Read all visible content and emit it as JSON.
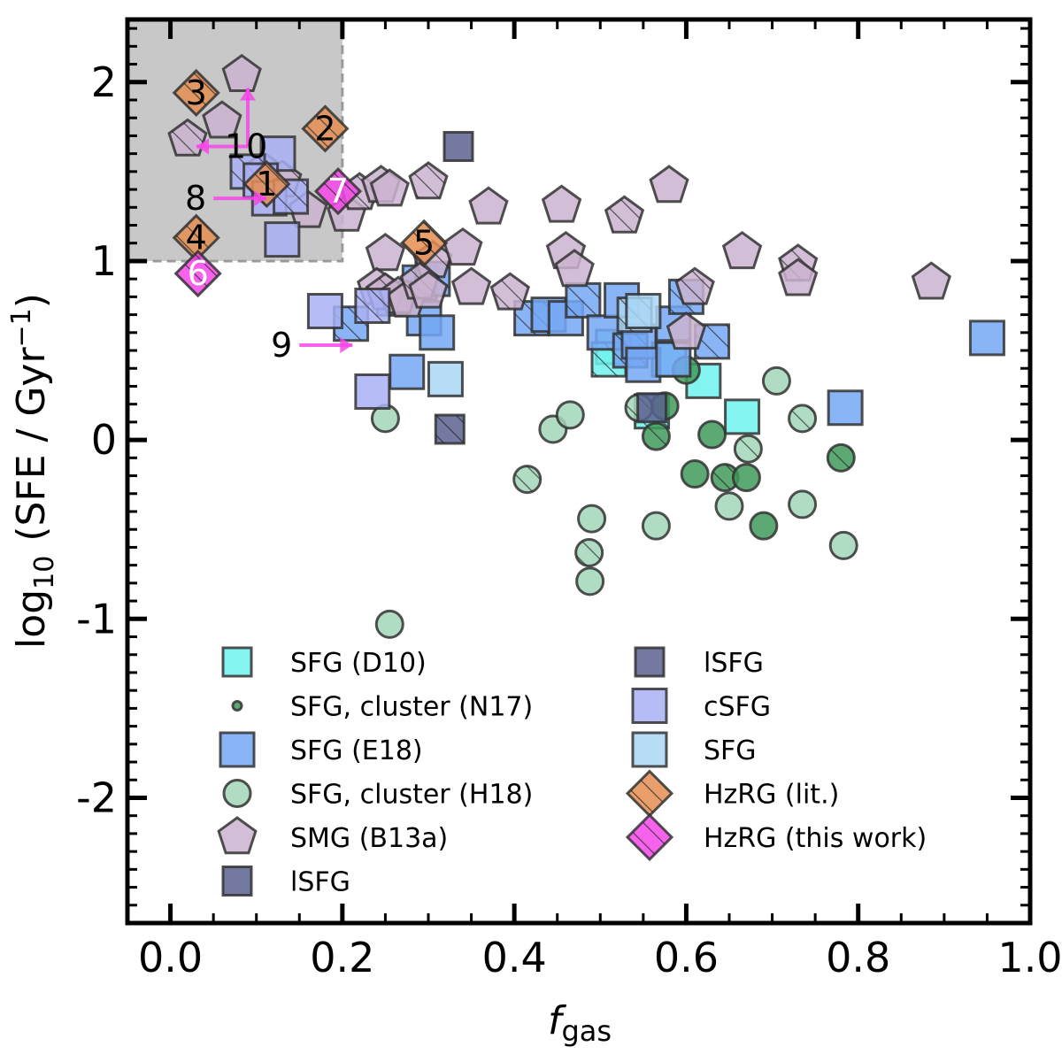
{
  "chart_data": {
    "type": "scatter",
    "xlabel_italic": "f",
    "xlabel_sub": "gas",
    "ylabel_pre": "log",
    "ylabel_sub": "10",
    "ylabel_post": "(SFE / Gyr",
    "ylabel_sup": "−1",
    "ylabel_close": ")",
    "xlim": [
      -0.05,
      1.0
    ],
    "ylim": [
      -2.7,
      2.35
    ],
    "x_ticks": [
      0.0,
      0.2,
      0.4,
      0.6,
      0.8,
      1.0
    ],
    "x_tick_labels": [
      "0.0",
      "0.2",
      "0.4",
      "0.6",
      "0.8",
      "1.0"
    ],
    "y_ticks": [
      2,
      1,
      0,
      -1,
      -2
    ],
    "y_tick_labels": [
      "2",
      "1",
      "0",
      "-1",
      "-2"
    ],
    "shaded_region": {
      "x": [
        -0.05,
        0.2
      ],
      "y": [
        1.0,
        2.35
      ],
      "color": "#c8c8c8"
    },
    "series": [
      {
        "name": "SFG (D10)",
        "marker": "square",
        "color": "#6ff2ee",
        "points": [
          [
            0.515,
            0.52
          ],
          [
            0.51,
            0.45
          ],
          [
            0.58,
            0.45
          ],
          [
            0.62,
            0.33
          ],
          [
            0.56,
            0.16
          ],
          [
            0.665,
            0.13
          ]
        ]
      },
      {
        "name": "SFG, cluster (N17)",
        "marker": "circle",
        "color": "#3f9a5a",
        "points": [
          [
            0.6,
            0.39
          ],
          [
            0.565,
            0.02
          ],
          [
            0.63,
            0.03
          ],
          [
            0.61,
            -0.19
          ],
          [
            0.645,
            -0.21
          ],
          [
            0.67,
            -0.21
          ],
          [
            0.69,
            -0.48
          ],
          [
            0.78,
            -0.1
          ],
          [
            0.575,
            0.19
          ]
        ]
      },
      {
        "name": "SFG (E18)",
        "marker": "square",
        "color": "#74a7f5",
        "points": [
          [
            0.29,
            0.88
          ],
          [
            0.305,
            0.9
          ],
          [
            0.26,
            0.79
          ],
          [
            0.295,
            0.68
          ],
          [
            0.21,
            0.65
          ],
          [
            0.31,
            0.6
          ],
          [
            0.275,
            0.38
          ],
          [
            0.42,
            0.68
          ],
          [
            0.44,
            0.7
          ],
          [
            0.46,
            0.68
          ],
          [
            0.48,
            0.78
          ],
          [
            0.505,
            0.6
          ],
          [
            0.525,
            0.78
          ],
          [
            0.535,
            0.5
          ],
          [
            0.545,
            0.55
          ],
          [
            0.585,
            0.65
          ],
          [
            0.6,
            0.8
          ],
          [
            0.55,
            0.42
          ],
          [
            0.585,
            0.45
          ],
          [
            0.63,
            0.55
          ],
          [
            0.785,
            0.18
          ],
          [
            0.95,
            0.57
          ]
        ]
      },
      {
        "name": "SFG, cluster (H18)",
        "marker": "circle",
        "color": "#a2d6b8",
        "points": [
          [
            0.25,
            0.12
          ],
          [
            0.415,
            -0.22
          ],
          [
            0.445,
            0.06
          ],
          [
            0.465,
            0.14
          ],
          [
            0.545,
            0.18
          ],
          [
            0.565,
            -0.48
          ],
          [
            0.49,
            -0.44
          ],
          [
            0.487,
            -0.63
          ],
          [
            0.488,
            -0.79
          ],
          [
            0.255,
            -1.03
          ],
          [
            0.672,
            -0.05
          ],
          [
            0.65,
            -0.37
          ],
          [
            0.705,
            0.33
          ],
          [
            0.735,
            0.12
          ],
          [
            0.735,
            -0.36
          ],
          [
            0.783,
            -0.59
          ]
        ]
      },
      {
        "name": "SMG (B13a)",
        "marker": "pentagon",
        "color": "#cbb3d0",
        "points": [
          [
            0.083,
            2.04
          ],
          [
            0.02,
            1.68
          ],
          [
            0.06,
            1.78
          ],
          [
            0.108,
            1.5
          ],
          [
            0.13,
            1.45
          ],
          [
            0.16,
            1.28
          ],
          [
            0.205,
            1.26
          ],
          [
            0.22,
            1.38
          ],
          [
            0.245,
            1.42
          ],
          [
            0.255,
            1.4
          ],
          [
            0.3,
            1.44
          ],
          [
            0.37,
            1.3
          ],
          [
            0.25,
            1.04
          ],
          [
            0.305,
            1.0
          ],
          [
            0.34,
            1.07
          ],
          [
            0.24,
            0.85
          ],
          [
            0.25,
            0.82
          ],
          [
            0.265,
            0.8
          ],
          [
            0.275,
            0.78
          ],
          [
            0.29,
            0.88
          ],
          [
            0.3,
            0.83
          ],
          [
            0.35,
            0.85
          ],
          [
            0.395,
            0.82
          ],
          [
            0.46,
            1.05
          ],
          [
            0.455,
            1.31
          ],
          [
            0.528,
            1.25
          ],
          [
            0.58,
            1.42
          ],
          [
            0.665,
            1.05
          ],
          [
            0.73,
            0.98
          ],
          [
            0.73,
            0.9
          ],
          [
            0.885,
            0.88
          ],
          [
            0.61,
            0.85
          ],
          [
            0.6,
            0.6
          ],
          [
            0.47,
            0.95
          ]
        ]
      },
      {
        "name": "lSFG",
        "marker": "square-small",
        "color": "#5a6190",
        "points": [
          [
            0.335,
            1.64
          ],
          [
            0.325,
            0.06
          ],
          [
            0.56,
            0.18
          ]
        ]
      },
      {
        "name": "cSFG",
        "marker": "square",
        "color": "#a8b0f5",
        "points": [
          [
            0.125,
            1.6
          ],
          [
            0.09,
            1.5
          ],
          [
            0.105,
            1.45
          ],
          [
            0.115,
            1.35
          ],
          [
            0.14,
            1.36
          ],
          [
            0.13,
            1.12
          ],
          [
            0.18,
            0.72
          ],
          [
            0.235,
            0.75
          ],
          [
            0.235,
            0.27
          ]
        ]
      },
      {
        "name": "SFG",
        "marker": "square",
        "color": "#a9d6f5",
        "points": [
          [
            0.32,
            0.34
          ],
          [
            0.54,
            0.7
          ],
          [
            0.55,
            0.72
          ]
        ]
      },
      {
        "name": "HzRG (lit.)",
        "marker": "diamond",
        "color": "#e58e52",
        "points": [
          [
            0.112,
            1.43
          ],
          [
            0.18,
            1.74
          ],
          [
            0.03,
            1.94
          ],
          [
            0.295,
            1.1
          ],
          [
            0.03,
            1.13
          ]
        ],
        "labels": [
          "1",
          "2",
          "3",
          "5",
          "4"
        ]
      },
      {
        "name": "HzRG (this work)",
        "marker": "diamond",
        "color": "#f547e8",
        "points": [
          [
            0.195,
            1.39
          ],
          [
            0.032,
            0.93
          ]
        ],
        "labels": [
          "7",
          "6"
        ]
      }
    ],
    "limits": [
      {
        "label": "8",
        "x": 0.05,
        "y": 1.35,
        "direction": "right"
      },
      {
        "label": "9",
        "x": 0.15,
        "y": 0.53,
        "direction": "right"
      },
      {
        "label": "10",
        "x": 0.09,
        "y": 1.64,
        "direction": "left-up"
      }
    ],
    "legend": {
      "placement": "lower-center",
      "entries": [
        {
          "label": "SFG (D10)",
          "marker": "square-small",
          "color": "#6ff2ee",
          "hatch": false
        },
        {
          "label": "SFG, cluster (N17)",
          "marker": "circle-tiny",
          "color": "#3f9a5a",
          "hatch": false
        },
        {
          "label": "SFG (E18)",
          "marker": "square",
          "color": "#74a7f5",
          "hatch": false
        },
        {
          "label": "SFG, cluster (H18)",
          "marker": "circle",
          "color": "#a2d6b8",
          "hatch": false
        },
        {
          "label": "SMG (B13a)",
          "marker": "pentagon",
          "color": "#cbb3d0",
          "hatch": false
        },
        {
          "label": "lSFG",
          "marker": "square-small",
          "color": "#5a6190",
          "hatch": false
        },
        {
          "label": "lSFG",
          "marker": "square-small",
          "color": "#5a6190",
          "hatch": false
        },
        {
          "label": "cSFG",
          "marker": "square",
          "color": "#a8b0f5",
          "hatch": false
        },
        {
          "label": "SFG",
          "marker": "square",
          "color": "#a9d6f5",
          "hatch": false
        },
        {
          "label": "HzRG (lit.)",
          "marker": "diamond",
          "color": "#e58e52",
          "hatch": true
        },
        {
          "label": "HzRG (this work)",
          "marker": "diamond",
          "color": "#f547e8",
          "hatch": true
        }
      ]
    }
  }
}
